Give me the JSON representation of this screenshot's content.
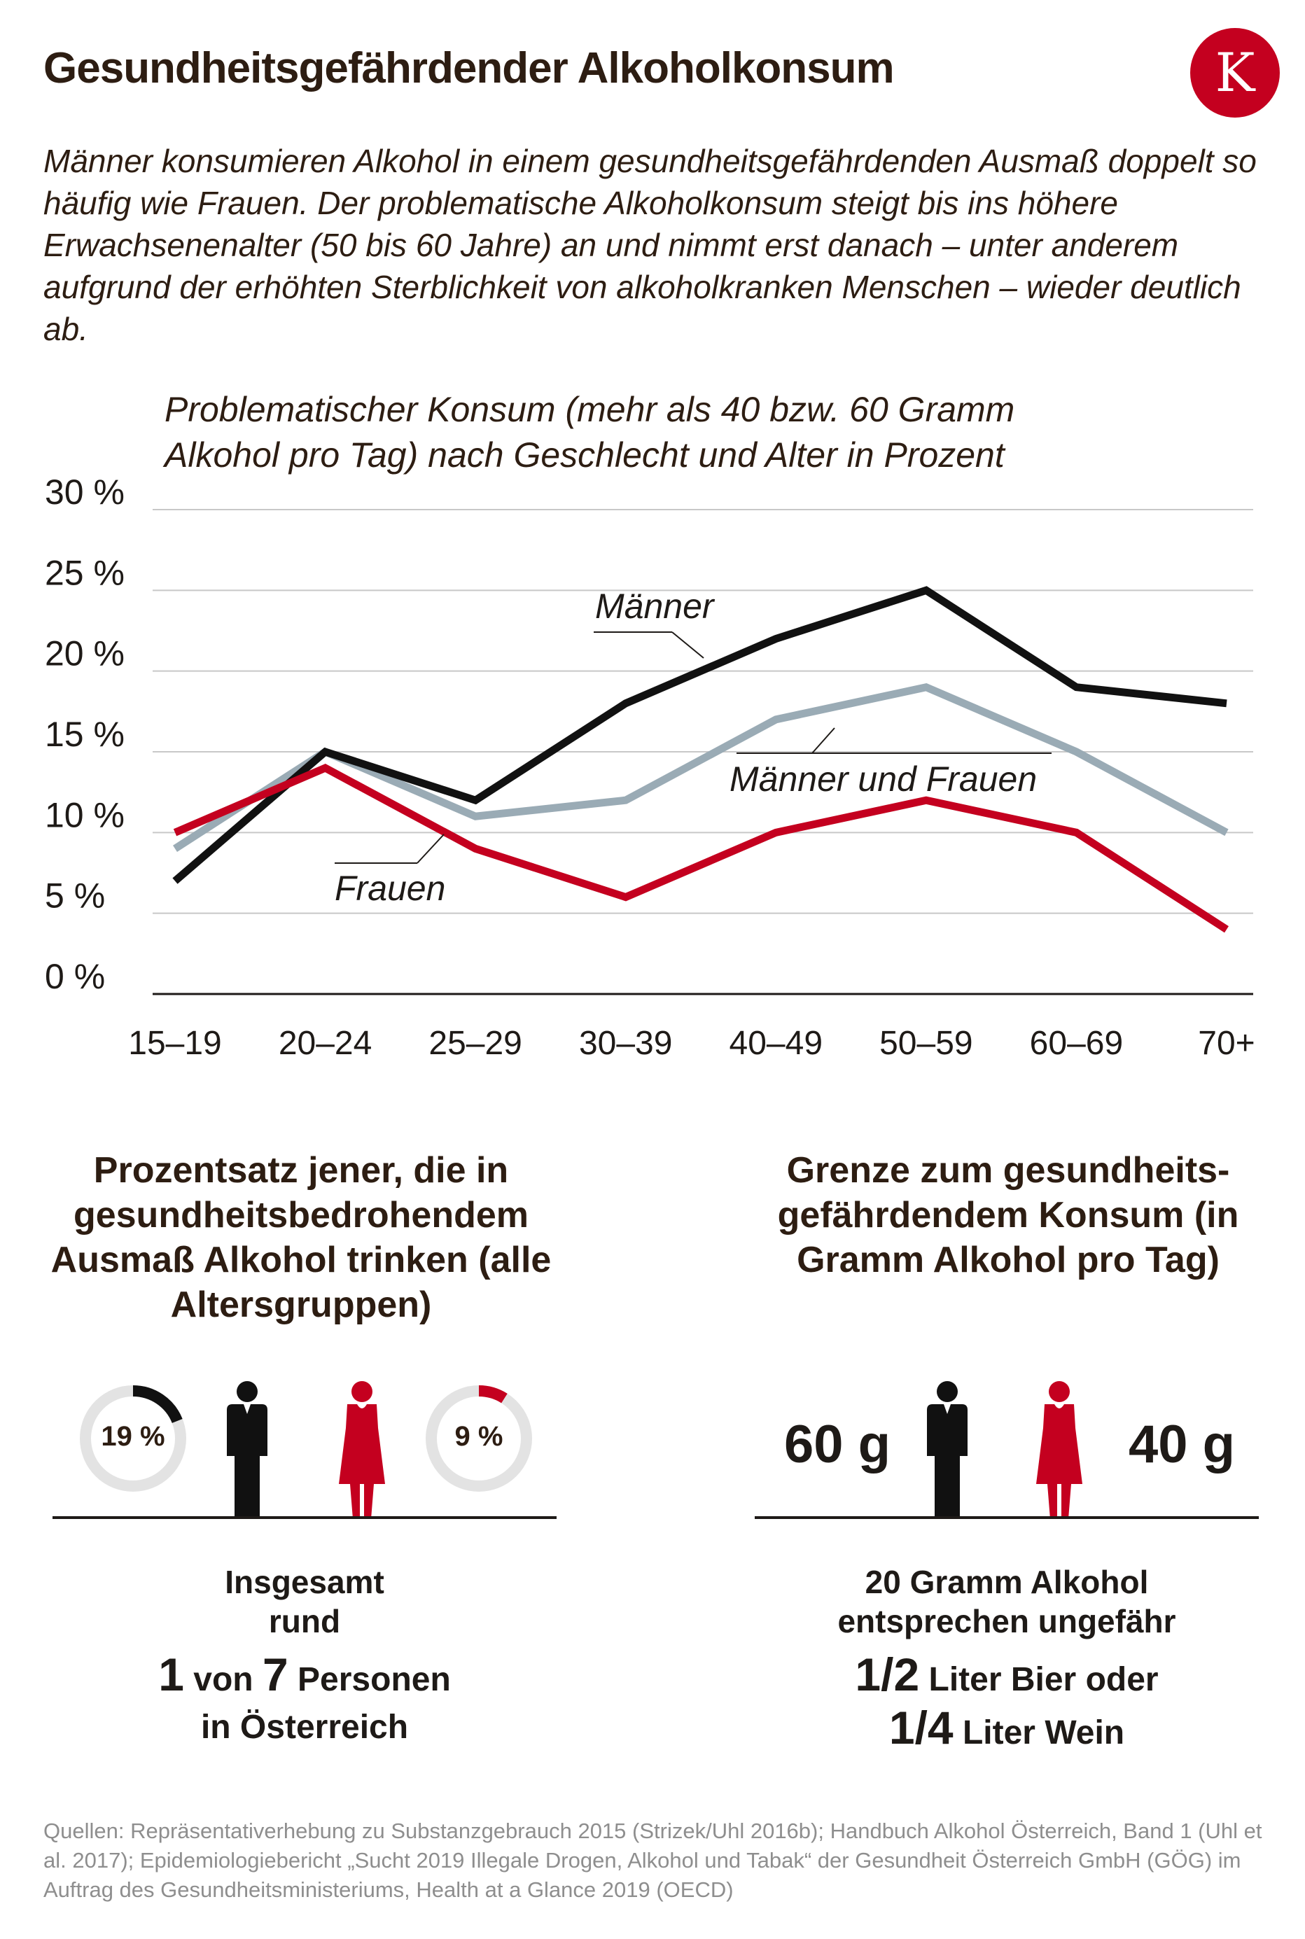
{
  "title": "Gesundheitsgefährdender Alkoholkonsum",
  "logo": {
    "letter": "K",
    "color": "#c4001f"
  },
  "intro": "Männer konsumieren Alkohol in einem gesundheitsgefährdenden Ausmaß doppelt so häufig wie Frauen. Der problematische Alkoholkonsum steigt bis ins höhere Erwachsenenalter (50 bis 60 Jahre) an und nimmt erst danach – unter anderem aufgrund der erhöhten Sterblichkeit von alkoholkranken Menschen – wieder deutlich ab.",
  "chart_data": {
    "type": "line",
    "title_line1": "Problematischer Konsum (mehr als 40 bzw. 60 Gramm",
    "title_line2": "Alkohol pro Tag) nach Geschlecht und Alter in Prozent",
    "categories": [
      "15–19",
      "20–24",
      "25–29",
      "30–39",
      "40–49",
      "50–59",
      "60–69",
      "70+"
    ],
    "y_ticks": [
      "0 %",
      "5 %",
      "10 %",
      "15 %",
      "20 %",
      "25 %",
      "30 %"
    ],
    "ylim": [
      0,
      30
    ],
    "grid": true,
    "series": [
      {
        "name": "Männer und Frauen",
        "color": "#9aabb5",
        "values": [
          9,
          15,
          11,
          12,
          17,
          19,
          15,
          10
        ]
      },
      {
        "name": "Männer",
        "color": "#111111",
        "values": [
          7,
          15,
          12,
          18,
          22,
          25,
          19,
          18
        ]
      },
      {
        "name": "Frauen",
        "color": "#c4001f",
        "values": [
          10,
          14,
          9,
          6,
          10,
          12,
          10,
          4
        ]
      }
    ]
  },
  "left_panel": {
    "title": "Prozentsatz jener, die in gesundheitsbedrohendem Ausmaß Alkohol trinken (alle Altersgruppen)",
    "men_percent": 19,
    "men_label": "19 %",
    "women_percent": 9,
    "women_label": "9 %",
    "men_icon": "man-icon",
    "women_icon": "woman-icon",
    "facts_line1": "Insgesamt",
    "facts_line2": "rund",
    "num1": "1",
    "word_von": "von",
    "num2": "7",
    "word_personen": "Personen",
    "facts_line4": "in Österreich"
  },
  "right_panel": {
    "title": "Grenze zum gesundheits- gefährdendem Konsum (in Gramm Alkohol pro Tag)",
    "men_grams": "60 g",
    "women_grams": "40 g",
    "facts_line1": "20 Gramm Alkohol",
    "facts_line2": "entsprechen ungefähr",
    "beer_num": "1/2",
    "beer_text": "Liter Bier oder",
    "wine_num": "1/4",
    "wine_text": "Liter Wein"
  },
  "colors": {
    "men": "#111111",
    "women": "#c4001f",
    "total": "#9aabb5",
    "donut_track": "#e3e3e3"
  },
  "source": "Quellen: Repräsentativerhebung zu Substanzgebrauch 2015 (Strizek/Uhl 2016b); Handbuch Alkohol Österreich, Band 1 (Uhl et al. 2017); Epidemiologiebericht „Sucht 2019 Illegale Drogen, Alkohol und Tabak“ der Gesundheit Österreich GmbH (GÖG) im Auftrag des Gesundheitsministeriums, Health at a Glance 2019 (OECD)"
}
